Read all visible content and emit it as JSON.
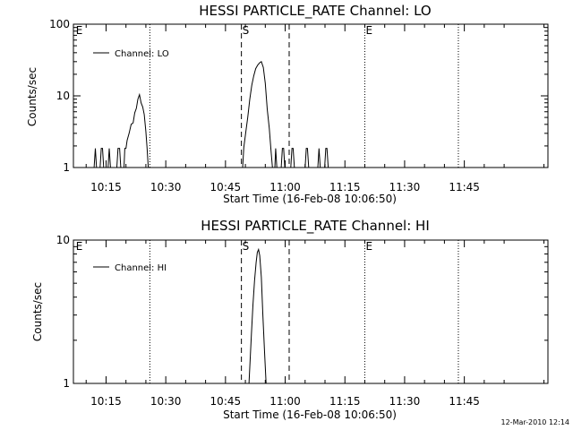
{
  "footer": {
    "timestamp": "12-Mar-2010 12:14"
  },
  "chart_data": [
    {
      "type": "line",
      "title": "HESSI PARTICLE_RATE Channel: LO",
      "xlabel": "Start Time (16-Feb-08 10:06:50)",
      "ylabel": "Counts/sec",
      "yscale": "log",
      "ylim": [
        1,
        100
      ],
      "xlim_min": [
        6.8,
        126
      ],
      "y_ticks": [
        {
          "v": 1,
          "label": "1"
        },
        {
          "v": 10,
          "label": "10"
        },
        {
          "v": 100,
          "label": "100"
        }
      ],
      "x_ticks": [
        {
          "v": 15,
          "label": "10:15"
        },
        {
          "v": 30,
          "label": "10:30"
        },
        {
          "v": 45,
          "label": "10:45"
        },
        {
          "v": 60,
          "label": "11:00"
        },
        {
          "v": 75,
          "label": "11:15"
        },
        {
          "v": 90,
          "label": "11:30"
        },
        {
          "v": 105,
          "label": "11:45"
        }
      ],
      "markers": [
        {
          "x": 7.2,
          "label": "E",
          "style": "none"
        },
        {
          "x": 26,
          "label": "",
          "style": "dotted"
        },
        {
          "x": 49,
          "label": "S",
          "style": "dashed"
        },
        {
          "x": 61,
          "label": "",
          "style": "dashed"
        },
        {
          "x": 80,
          "label": "E",
          "style": "dotted"
        },
        {
          "x": 103.5,
          "label": "",
          "style": "dotted"
        }
      ],
      "legend": {
        "label": "Channel: LO",
        "placement": "top-left"
      },
      "series": [
        {
          "name": "Channel: LO",
          "segments": [
            [
              [
                12.0,
                1
              ],
              [
                12.3,
                1.85
              ],
              [
                12.6,
                1
              ]
            ],
            [
              [
                13.5,
                1
              ],
              [
                13.8,
                1.85
              ],
              [
                14.1,
                1.85
              ],
              [
                14.4,
                1
              ]
            ],
            [
              [
                15.5,
                1
              ],
              [
                15.8,
                1.85
              ],
              [
                16.1,
                1
              ]
            ],
            [
              [
                17.7,
                1
              ],
              [
                18.0,
                1.85
              ],
              [
                18.4,
                1.85
              ],
              [
                18.7,
                1
              ]
            ],
            [
              [
                19.5,
                1
              ],
              [
                19.7,
                1.85
              ],
              [
                20.0,
                1.85
              ],
              [
                20.3,
                2.4
              ],
              [
                20.8,
                3.0
              ],
              [
                21.3,
                4.0
              ],
              [
                21.8,
                4.2
              ],
              [
                22.2,
                5.8
              ],
              [
                22.6,
                6.7
              ],
              [
                23.0,
                9.0
              ],
              [
                23.4,
                10.4
              ],
              [
                23.8,
                8.0
              ],
              [
                24.2,
                7.0
              ],
              [
                24.6,
                5.5
              ],
              [
                25.0,
                3.2
              ],
              [
                25.3,
                1.85
              ],
              [
                25.6,
                1.0
              ]
            ],
            [
              [
                49.3,
                1
              ],
              [
                49.6,
                1.9
              ],
              [
                50.1,
                3.1
              ],
              [
                50.6,
                5.0
              ],
              [
                51.1,
                9.0
              ],
              [
                51.6,
                14.0
              ],
              [
                52.1,
                19.0
              ],
              [
                52.6,
                24.0
              ],
              [
                53.1,
                27.0
              ],
              [
                53.6,
                29.0
              ],
              [
                54.0,
                30.0
              ],
              [
                54.5,
                25.0
              ],
              [
                55.0,
                15.0
              ],
              [
                55.5,
                6.5
              ],
              [
                56.0,
                3.5
              ],
              [
                56.4,
                1.85
              ],
              [
                56.8,
                1
              ]
            ],
            [
              [
                57.4,
                1
              ],
              [
                57.6,
                1.85
              ],
              [
                57.9,
                1
              ]
            ],
            [
              [
                59.0,
                1
              ],
              [
                59.3,
                1.85
              ],
              [
                59.6,
                1.85
              ],
              [
                59.9,
                1
              ]
            ],
            [
              [
                61.4,
                1
              ],
              [
                61.7,
                1.85
              ],
              [
                62.0,
                1.85
              ],
              [
                62.3,
                1
              ]
            ],
            [
              [
                65.0,
                1
              ],
              [
                65.3,
                1.85
              ],
              [
                65.6,
                1.85
              ],
              [
                65.9,
                1
              ]
            ],
            [
              [
                68.2,
                1
              ],
              [
                68.5,
                1.85
              ],
              [
                68.8,
                1
              ]
            ],
            [
              [
                69.9,
                1
              ],
              [
                70.2,
                1.85
              ],
              [
                70.5,
                1.85
              ],
              [
                70.8,
                1
              ]
            ]
          ]
        }
      ]
    },
    {
      "type": "line",
      "title": "HESSI PARTICLE_RATE Channel: HI",
      "xlabel": "Start Time (16-Feb-08 10:06:50)",
      "ylabel": "Counts/sec",
      "yscale": "log",
      "ylim": [
        1,
        10
      ],
      "xlim_min": [
        6.8,
        126
      ],
      "y_ticks": [
        {
          "v": 1,
          "label": "1"
        },
        {
          "v": 10,
          "label": "10"
        }
      ],
      "x_ticks": [
        {
          "v": 15,
          "label": "10:15"
        },
        {
          "v": 30,
          "label": "10:30"
        },
        {
          "v": 45,
          "label": "10:45"
        },
        {
          "v": 60,
          "label": "11:00"
        },
        {
          "v": 75,
          "label": "11:15"
        },
        {
          "v": 90,
          "label": "11:30"
        },
        {
          "v": 105,
          "label": "11:45"
        }
      ],
      "markers": [
        {
          "x": 7.2,
          "label": "E",
          "style": "none"
        },
        {
          "x": 26,
          "label": "",
          "style": "dotted"
        },
        {
          "x": 49,
          "label": "S",
          "style": "dashed"
        },
        {
          "x": 61,
          "label": "",
          "style": "dashed"
        },
        {
          "x": 80,
          "label": "E",
          "style": "dotted"
        },
        {
          "x": 103.5,
          "label": "",
          "style": "dotted"
        }
      ],
      "legend": {
        "label": "Channel: HI",
        "placement": "top-left"
      },
      "series": [
        {
          "name": "Channel: HI",
          "segments": [
            [
              [
                50.9,
                1
              ],
              [
                51.1,
                1.3
              ],
              [
                51.5,
                2.2
              ],
              [
                51.9,
                3.5
              ],
              [
                52.3,
                5.2
              ],
              [
                52.7,
                7.0
              ],
              [
                53.0,
                8.2
              ],
              [
                53.3,
                8.6
              ],
              [
                53.6,
                7.8
              ],
              [
                54.0,
                5.5
              ],
              [
                54.4,
                3.0
              ],
              [
                54.8,
                1.7
              ],
              [
                55.2,
                1
              ]
            ]
          ]
        }
      ]
    }
  ]
}
